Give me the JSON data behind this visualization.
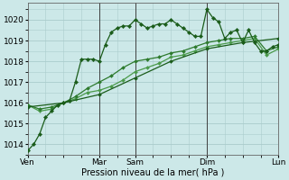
{
  "xlabel": "Pression niveau de la mer( hPa )",
  "bg_color": "#cce8e8",
  "grid_color": "#aacccc",
  "line_color_dark": "#1a5c1a",
  "line_color_mid": "#2d7a2d",
  "line_color_light": "#4a9a4a",
  "ylim": [
    1013.5,
    1020.8
  ],
  "yticks": [
    1014,
    1015,
    1016,
    1017,
    1018,
    1019,
    1020
  ],
  "day_labels": [
    "Ven",
    "Mar",
    "Sam",
    "Dim",
    "Lun"
  ],
  "day_positions": [
    0,
    48,
    72,
    120,
    168
  ],
  "vline_positions": [
    48,
    72,
    120,
    168
  ],
  "series1": {
    "x": [
      0,
      4,
      8,
      12,
      16,
      20,
      24,
      28,
      32,
      36,
      40,
      44,
      48,
      52,
      56,
      60,
      64,
      68,
      72,
      76,
      80,
      84,
      88,
      92,
      96,
      100,
      104,
      108,
      112,
      116,
      120,
      124,
      128,
      132,
      136,
      140,
      144,
      148,
      152,
      156,
      160,
      164,
      168
    ],
    "y": [
      1013.7,
      1014.0,
      1014.5,
      1015.3,
      1015.6,
      1015.9,
      1016.0,
      1016.1,
      1017.0,
      1018.1,
      1018.1,
      1018.1,
      1018.0,
      1018.8,
      1019.4,
      1019.6,
      1019.7,
      1019.7,
      1020.0,
      1019.8,
      1019.6,
      1019.7,
      1019.8,
      1019.8,
      1020.0,
      1019.8,
      1019.6,
      1019.4,
      1019.2,
      1019.2,
      1020.5,
      1020.1,
      1019.9,
      1019.1,
      1019.4,
      1019.5,
      1018.9,
      1019.5,
      1018.9,
      1018.5,
      1018.5,
      1018.7,
      1018.8
    ]
  },
  "series2": {
    "x": [
      0,
      8,
      16,
      24,
      32,
      40,
      48,
      56,
      64,
      72,
      80,
      88,
      96,
      104,
      112,
      120,
      128,
      136,
      144,
      152,
      160,
      168
    ],
    "y": [
      1015.9,
      1015.7,
      1015.8,
      1016.0,
      1016.3,
      1016.7,
      1017.0,
      1017.3,
      1017.7,
      1018.0,
      1018.1,
      1018.2,
      1018.4,
      1018.5,
      1018.7,
      1018.9,
      1019.0,
      1019.1,
      1019.1,
      1019.2,
      1018.5,
      1018.7
    ]
  },
  "series3": {
    "x": [
      0,
      8,
      16,
      24,
      32,
      40,
      48,
      56,
      64,
      72,
      80,
      88,
      96,
      104,
      112,
      120,
      128,
      136,
      144,
      152,
      160,
      168
    ],
    "y": [
      1015.9,
      1015.6,
      1015.7,
      1016.0,
      1016.2,
      1016.5,
      1016.6,
      1016.8,
      1017.1,
      1017.5,
      1017.7,
      1017.9,
      1018.2,
      1018.3,
      1018.5,
      1018.7,
      1018.8,
      1018.9,
      1019.0,
      1019.1,
      1018.3,
      1018.6
    ]
  },
  "series4": {
    "x": [
      0,
      24,
      48,
      72,
      96,
      120,
      144,
      168
    ],
    "y": [
      1015.8,
      1016.0,
      1016.4,
      1017.2,
      1018.0,
      1018.6,
      1018.9,
      1019.1
    ]
  }
}
